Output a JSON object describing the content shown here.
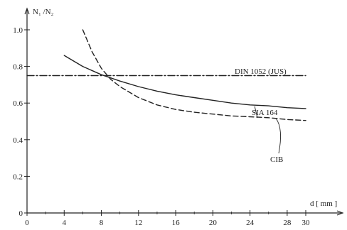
{
  "chart_data": {
    "type": "line",
    "title": "",
    "xlabel": "d [ mm ]",
    "ylabel": "N₁ /N₂",
    "xlim": [
      0,
      30
    ],
    "ylim": [
      0,
      1.0
    ],
    "x_ticks": [
      0,
      4,
      8,
      12,
      16,
      20,
      24,
      28,
      30
    ],
    "x_tick_labels": [
      "0",
      "4",
      "8",
      "12",
      "16",
      "20",
      "24",
      "28",
      "30"
    ],
    "y_ticks": [
      0,
      0.2,
      0.4,
      0.6,
      0.8,
      1.0
    ],
    "y_tick_labels": [
      "0",
      "0.2",
      "0.4",
      "0.6",
      "0.8",
      "1.0"
    ],
    "grid": false,
    "series": [
      {
        "name": "DIN 1052 (JUS)",
        "style": "dash-dot",
        "color": "#222222",
        "x": [
          0,
          30
        ],
        "y": [
          0.75,
          0.75
        ]
      },
      {
        "name": "SIA 164",
        "style": "solid",
        "color": "#222222",
        "x": [
          4,
          6,
          8,
          10,
          12,
          14,
          16,
          18,
          20,
          22,
          24,
          26,
          28,
          30
        ],
        "y": [
          0.86,
          0.8,
          0.755,
          0.72,
          0.69,
          0.665,
          0.645,
          0.63,
          0.615,
          0.6,
          0.59,
          0.585,
          0.575,
          0.57
        ]
      },
      {
        "name": "CIB",
        "style": "dashed",
        "color": "#222222",
        "x": [
          6,
          7,
          8,
          9,
          10,
          12,
          14,
          16,
          18,
          20,
          22,
          24,
          26,
          28,
          30
        ],
        "y": [
          1.0,
          0.88,
          0.79,
          0.73,
          0.69,
          0.63,
          0.59,
          0.565,
          0.55,
          0.54,
          0.53,
          0.525,
          0.52,
          0.51,
          0.505
        ]
      }
    ]
  }
}
